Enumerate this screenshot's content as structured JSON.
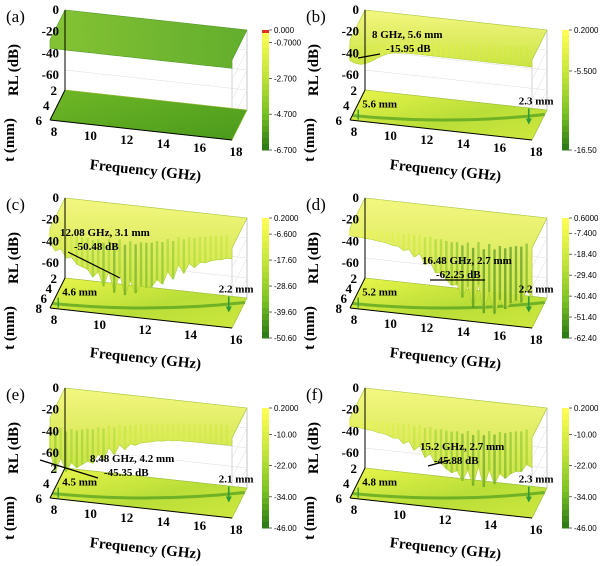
{
  "colors": {
    "dark_green": "#2e7d16",
    "mid_green": "#7cc224",
    "light_green": "#c6e63a",
    "yellow": "#fdfd55",
    "red_top": "#e03020",
    "arrow_green": "#2e9b3a"
  },
  "chart_data": [
    {
      "type": "surface3d",
      "panel_label": "(a)",
      "xlabel": "Frequency (GHz)",
      "ylabel": "t (mm)",
      "zlabel": "RL (dB)",
      "x_ticks": [
        "8",
        "10",
        "12",
        "14",
        "16",
        "18"
      ],
      "y_ticks": [
        "2",
        "4",
        "6"
      ],
      "z_ticks": [
        "0",
        "-20",
        "-40",
        "-60"
      ],
      "x_range": [
        8,
        18
      ],
      "y_range": [
        2,
        6
      ],
      "z_range": [
        -70,
        0
      ],
      "colorbar_ticks": [
        "0.000",
        "-0.7000",
        "-2.700",
        "-4.700",
        "-6.700"
      ],
      "colorbar_range": [
        -6.7,
        0.0
      ],
      "min_rl": -6.7,
      "annotations": {}
    },
    {
      "type": "surface3d",
      "panel_label": "(b)",
      "xlabel": "Frequency (GHz)",
      "ylabel": "t (mm)",
      "zlabel": "RL (dB)",
      "x_ticks": [
        "8",
        "10",
        "12",
        "14",
        "16",
        "18"
      ],
      "y_ticks": [
        "2",
        "4",
        "6"
      ],
      "z_ticks": [
        "0",
        "-20",
        "-40",
        "-60"
      ],
      "x_range": [
        8,
        18
      ],
      "y_range": [
        2,
        6
      ],
      "z_range": [
        -70,
        0
      ],
      "colorbar_ticks": [
        "0.2000",
        "-5.500",
        "-16.50"
      ],
      "colorbar_range": [
        -16.5,
        0.2
      ],
      "min_rl": -15.95,
      "annotations": {
        "peak_line1": "8 GHz,  5.6 mm",
        "peak_line2": "-15.95 dB",
        "low_thickness": "5.6 mm",
        "high_thickness": "2.3 mm"
      }
    },
    {
      "type": "surface3d",
      "panel_label": "(c)",
      "xlabel": "Frequency (GHz)",
      "ylabel": "t (mm)",
      "zlabel": "RL (dB)",
      "x_ticks": [
        "8",
        "10",
        "12",
        "14",
        "16"
      ],
      "y_ticks": [
        "2",
        "4",
        "6",
        "8"
      ],
      "z_ticks": [
        "0",
        "-20",
        "-40",
        "-60"
      ],
      "x_range": [
        8,
        16
      ],
      "y_range": [
        2,
        8
      ],
      "z_range": [
        -70,
        0
      ],
      "colorbar_ticks": [
        "0.2000",
        "-6.600",
        "-17.60",
        "-28.60",
        "-39.60",
        "-50.60"
      ],
      "colorbar_range": [
        -50.6,
        0.2
      ],
      "min_rl": -50.48,
      "annotations": {
        "peak_line1": "12.08 GHz, 3.1 mm",
        "peak_line2": "-50.48 dB",
        "low_thickness": "4.6 mm",
        "high_thickness": "2.2 mm"
      }
    },
    {
      "type": "surface3d",
      "panel_label": "(d)",
      "xlabel": "Frequency (GHz)",
      "ylabel": "t (mm)",
      "zlabel": "RL (dB)",
      "x_ticks": [
        "8",
        "10",
        "12",
        "14",
        "16",
        "18"
      ],
      "y_ticks": [
        "2",
        "4",
        "6",
        "8"
      ],
      "z_ticks": [
        "0",
        "-20",
        "-40",
        "-60"
      ],
      "x_range": [
        8,
        18
      ],
      "y_range": [
        2,
        8
      ],
      "z_range": [
        -70,
        0
      ],
      "colorbar_ticks": [
        "0.6000",
        "-7.400",
        "-18.40",
        "-29.40",
        "-40.40",
        "-51.40",
        "-62.40"
      ],
      "colorbar_range": [
        -62.4,
        0.6
      ],
      "min_rl": -62.25,
      "annotations": {
        "peak_line1": "16.48 GHz, 2.7 mm",
        "peak_line2": "-62.25 dB",
        "low_thickness": "5.2 mm",
        "high_thickness": "2.2 mm"
      }
    },
    {
      "type": "surface3d",
      "panel_label": "(e)",
      "xlabel": "Frequency (GHz)",
      "ylabel": "t (mm)",
      "zlabel": "RL (dB)",
      "x_ticks": [
        "8",
        "10",
        "12",
        "14",
        "16",
        "18"
      ],
      "y_ticks": [
        "2",
        "4",
        "6"
      ],
      "z_ticks": [
        "0",
        "-20",
        "-40",
        "-60"
      ],
      "x_range": [
        8,
        18
      ],
      "y_range": [
        2,
        6
      ],
      "z_range": [
        -70,
        0
      ],
      "colorbar_ticks": [
        "0.2000",
        "-10.00",
        "-22.00",
        "-34.00",
        "-46.00"
      ],
      "colorbar_range": [
        -46.0,
        0.2
      ],
      "min_rl": -45.35,
      "annotations": {
        "peak_line1": "8.48 GHz, 4.2 mm",
        "peak_line2": "-45.35 dB",
        "low_thickness": "4.5 mm",
        "high_thickness": "2.1 mm"
      }
    },
    {
      "type": "surface3d",
      "panel_label": "(f)",
      "xlabel": "Frequency (GHz)",
      "ylabel": "t (mm)",
      "zlabel": "RL (dB)",
      "x_ticks": [
        "8",
        "10",
        "12",
        "14",
        "16"
      ],
      "y_ticks": [
        "2",
        "4",
        "6"
      ],
      "z_ticks": [
        "0",
        "-20",
        "-40",
        "-60"
      ],
      "x_range": [
        8,
        16
      ],
      "y_range": [
        2,
        6
      ],
      "z_range": [
        -70,
        0
      ],
      "colorbar_ticks": [
        "0.2000",
        "-10.00",
        "-22.00",
        "-34.00",
        "-46.00"
      ],
      "colorbar_range": [
        -46.0,
        0.2
      ],
      "min_rl": -45.88,
      "annotations": {
        "peak_line1": "15.2 GHz, 2.7 mm",
        "peak_line2": "-45.88 dB",
        "low_thickness": "4.8 mm",
        "high_thickness": "2.3 mm"
      }
    }
  ]
}
